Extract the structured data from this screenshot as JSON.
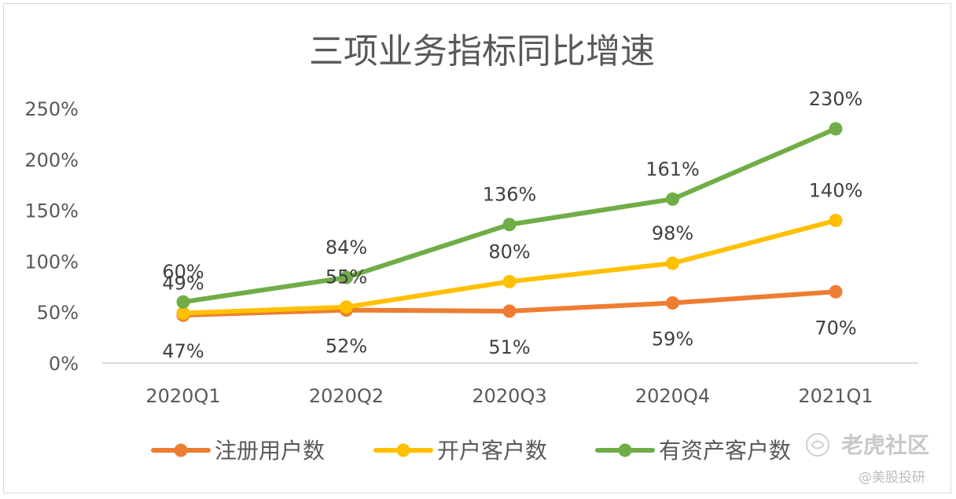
{
  "chart_data": {
    "type": "line",
    "title": "三项业务指标同比增速",
    "categories": [
      "2020Q1",
      "2020Q2",
      "2020Q3",
      "2020Q4",
      "2021Q1"
    ],
    "y_ticks": [
      "0%",
      "50%",
      "100%",
      "150%",
      "200%",
      "250%"
    ],
    "ylim": [
      0,
      250
    ],
    "series": [
      {
        "name": "注册用户数",
        "color": "#ed7d31",
        "values": [
          47,
          52,
          51,
          59,
          70
        ],
        "labels": [
          "47%",
          "52%",
          "51%",
          "59%",
          "70%"
        ],
        "label_position": "below"
      },
      {
        "name": "开户客户数",
        "color": "#ffc000",
        "values": [
          49,
          55,
          80,
          98,
          140
        ],
        "labels": [
          "49%",
          "55%",
          "80%",
          "98%",
          "140%"
        ],
        "label_position": "above"
      },
      {
        "name": "有资产客户数",
        "color": "#70ad47",
        "values": [
          60,
          84,
          136,
          161,
          230
        ],
        "labels": [
          "60%",
          "84%",
          "136%",
          "161%",
          "230%"
        ],
        "label_position": "above"
      }
    ],
    "legend_position": "bottom"
  },
  "watermark": {
    "brand": "老虎社区",
    "handle": "@美股投研"
  },
  "colors": {
    "axis": "#d9d9d9",
    "text": "#595959"
  }
}
